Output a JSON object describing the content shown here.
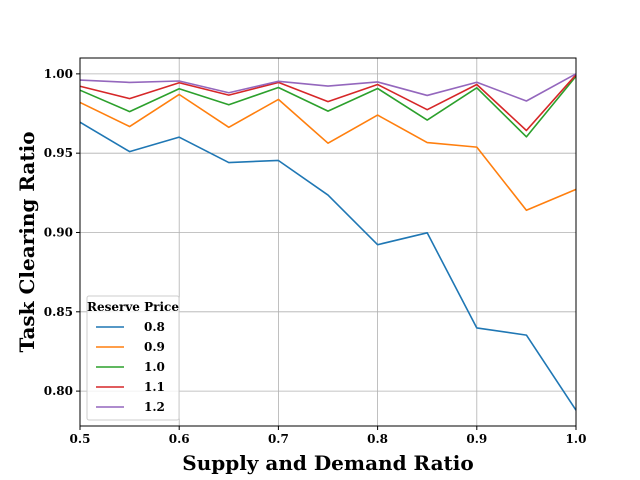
{
  "chart_data": {
    "type": "line",
    "xlabel": "Supply and Demand Ratio",
    "ylabel": "Task Clearing Ratio",
    "xlim": [
      0.5,
      1.0
    ],
    "ylim": [
      0.778,
      1.01
    ],
    "xticks": [
      0.5,
      0.6,
      0.7,
      0.8,
      0.9,
      1.0
    ],
    "xtick_labels": [
      "0.5",
      "0.6",
      "0.7",
      "0.8",
      "0.9",
      "1.0"
    ],
    "yticks": [
      0.8,
      0.85,
      0.9,
      0.95,
      1.0
    ],
    "ytick_labels": [
      "0.80",
      "0.85",
      "0.90",
      "0.95",
      "1.00"
    ],
    "grid": true,
    "legend": {
      "title": "Reserve Price",
      "placement": "lower-left"
    },
    "x": [
      0.5,
      0.55,
      0.6,
      0.65,
      0.7,
      0.75,
      0.8,
      0.85,
      0.9,
      0.95,
      1.0
    ],
    "series": [
      {
        "name": "0.8",
        "color": "#1f77b4",
        "values": [
          0.9695,
          0.951,
          0.9601,
          0.9441,
          0.9454,
          0.9236,
          0.8923,
          0.8998,
          0.8398,
          0.8353,
          0.788
        ]
      },
      {
        "name": "0.9",
        "color": "#ff7f0e",
        "values": [
          0.982,
          0.9668,
          0.987,
          0.9663,
          0.9839,
          0.9563,
          0.974,
          0.9567,
          0.9538,
          0.914,
          0.9272
        ]
      },
      {
        "name": "1.0",
        "color": "#2ca02c",
        "values": [
          0.9897,
          0.9762,
          0.9906,
          0.9805,
          0.9914,
          0.9765,
          0.9908,
          0.9709,
          0.9912,
          0.9603,
          0.9985
        ]
      },
      {
        "name": "1.1",
        "color": "#d62728",
        "values": [
          0.9922,
          0.9844,
          0.9944,
          0.9866,
          0.9946,
          0.9825,
          0.9933,
          0.9774,
          0.9933,
          0.9643,
          0.9995
        ]
      },
      {
        "name": "1.2",
        "color": "#9467bd",
        "values": [
          0.9961,
          0.9946,
          0.9955,
          0.9881,
          0.9953,
          0.9923,
          0.9949,
          0.9864,
          0.9947,
          0.9829,
          1.0
        ]
      }
    ]
  }
}
